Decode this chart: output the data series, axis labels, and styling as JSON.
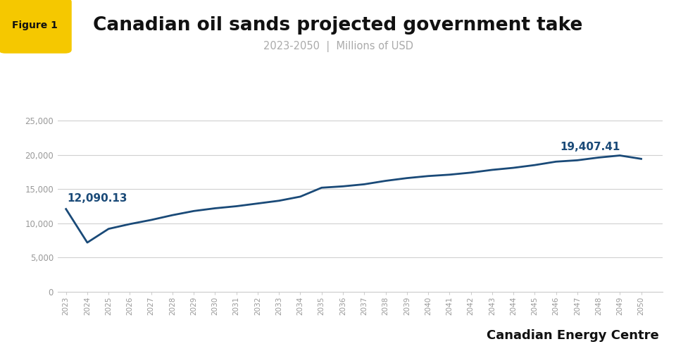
{
  "title": "Canadian oil sands projected government take",
  "subtitle": "2023-2050  |  Millions of USD",
  "figure_label_text": "Figure 1",
  "branding": "Canadian Energy Centre",
  "years": [
    2023,
    2024,
    2025,
    2026,
    2027,
    2028,
    2029,
    2030,
    2031,
    2032,
    2033,
    2034,
    2035,
    2036,
    2037,
    2038,
    2039,
    2040,
    2041,
    2042,
    2043,
    2044,
    2045,
    2046,
    2047,
    2048,
    2049,
    2050
  ],
  "values": [
    12090.13,
    7200,
    9200,
    9900,
    10500,
    11200,
    11800,
    12200,
    12500,
    12900,
    13300,
    13900,
    15200,
    15400,
    15700,
    16200,
    16600,
    16900,
    17100,
    17400,
    17800,
    18100,
    18500,
    19000,
    19200,
    19600,
    19900,
    19407.41
  ],
  "line_color": "#1a4a78",
  "annotation_color": "#1a4a78",
  "first_label": "12,090.13",
  "last_label": "19,407.41",
  "ylim": [
    0,
    27000
  ],
  "yticks": [
    0,
    5000,
    10000,
    15000,
    20000,
    25000
  ],
  "background_color": "#ffffff",
  "grid_color": "#d0d0d0",
  "title_fontsize": 19,
  "subtitle_fontsize": 10.5,
  "tick_label_color": "#999999",
  "figure_label_bg": "#f5c800",
  "annotation_fontsize": 11
}
